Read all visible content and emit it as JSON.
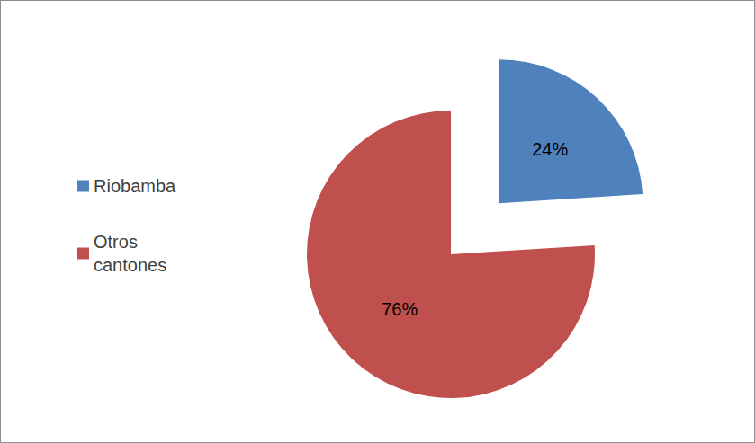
{
  "chart_data": {
    "type": "pie",
    "categories": [
      "Riobamba",
      "Otros cantones"
    ],
    "values": [
      24,
      76
    ],
    "value_labels": [
      "24%",
      "76%"
    ],
    "colors": [
      "#4f81bd",
      "#c0504d"
    ],
    "data_labels": true,
    "legend": "left"
  }
}
